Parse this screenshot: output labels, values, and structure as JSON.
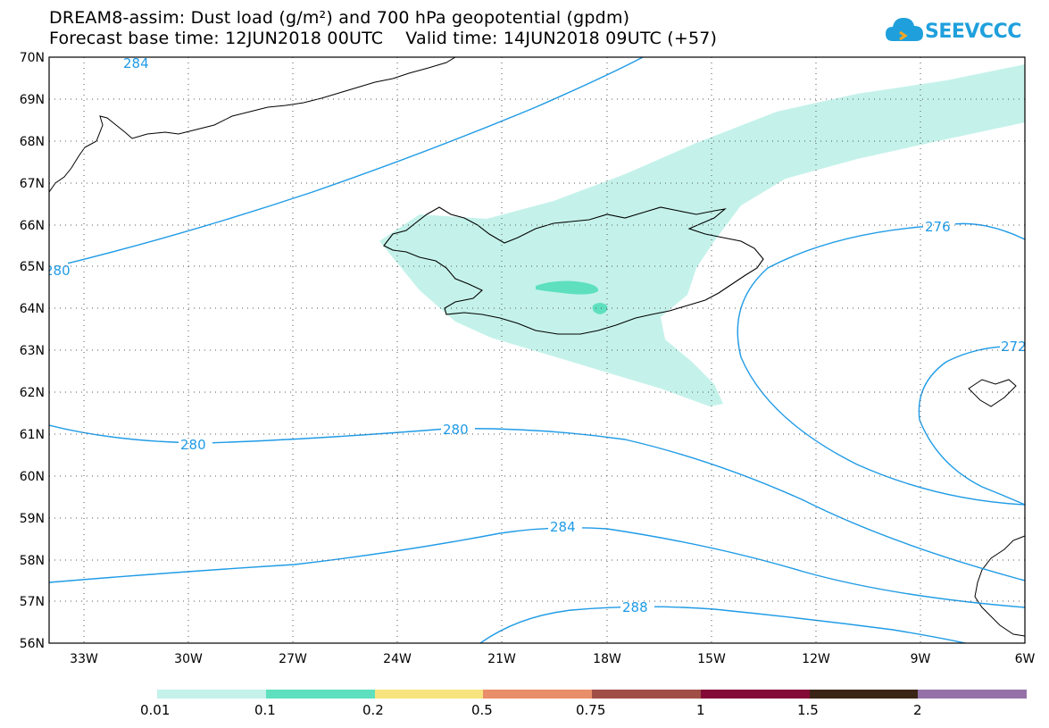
{
  "header": {
    "title_line1": "DREAM8-assim: Dust load (g/m²) and 700 hPa geopotential (gpdm)",
    "forecast_base": "Forecast base time: 12JUN2018 00UTC",
    "valid_time": "Valid time: 14JUN2018 09UTC (+57)"
  },
  "logo": {
    "text": "SEEVCCC",
    "icon": "cloud-icon",
    "color": "#1fa0dc"
  },
  "map": {
    "lat_labels": [
      "70N",
      "69N",
      "68N",
      "67N",
      "66N",
      "65N",
      "64N",
      "63N",
      "62N",
      "61N",
      "60N",
      "59N",
      "58N",
      "57N",
      "56N"
    ],
    "lon_labels": [
      "33W",
      "30W",
      "27W",
      "24W",
      "21W",
      "18W",
      "15W",
      "12W",
      "9W",
      "6W"
    ],
    "contour_labels": [
      "284",
      "280",
      "276",
      "272",
      "280",
      "280",
      "284",
      "288"
    ],
    "contour_color": "#1f9be6",
    "dust_colors": {
      "light": "#c4f2ea",
      "medium": "#5ee0bf"
    }
  },
  "legend": {
    "labels": [
      "0.01",
      "0.1",
      "0.2",
      "0.5",
      "0.75",
      "1",
      "1.5",
      "2"
    ],
    "colors": [
      "#c4f2ea",
      "#5ee0bf",
      "#f7e47e",
      "#e98e6a",
      "#a14f46",
      "#830a36",
      "#3a2415",
      "#9472a8"
    ]
  }
}
